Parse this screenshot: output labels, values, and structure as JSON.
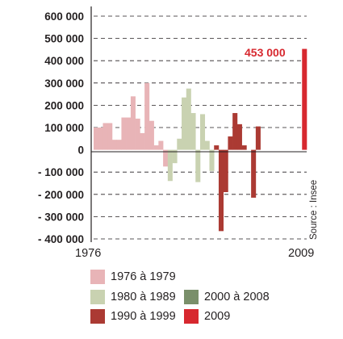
{
  "chart_data": {
    "type": "bar",
    "x_start_label": "1976",
    "x_end_label": "2009",
    "ylim": [
      -400000,
      600000
    ],
    "yticks": [
      "600 000",
      "500 000",
      "400 000",
      "300 000",
      "200 000",
      "100 000",
      "0",
      "- 100 000",
      "- 200 000",
      "- 300 000",
      "- 400 000"
    ],
    "ytick_values": [
      600000,
      500000,
      400000,
      300000,
      200000,
      100000,
      0,
      -100000,
      -200000,
      -300000,
      -400000
    ],
    "grid": "horizontal dashed",
    "source": "Source : Insee",
    "annotation": {
      "text": "453 000",
      "year": 2009
    },
    "x": [
      "1976Q1",
      "1976Q2",
      "1976Q3",
      "1976Q4",
      "1977Q1",
      "1977Q2",
      "1977Q3",
      "1977Q4",
      "1978Q1",
      "1978Q2",
      "1978Q3",
      "1978Q4",
      "1979Q1",
      "1979Q2",
      "1979Q3",
      "1979Q4",
      "1980",
      "1981",
      "1982",
      "1983",
      "1984",
      "1985",
      "1986",
      "1987",
      "1988",
      "1989",
      "1990",
      "1991",
      "1992",
      "1993",
      "1994",
      "1995",
      "1996",
      "1997",
      "1998",
      "1999",
      "2000",
      "2001",
      "2002",
      "2003",
      "2004",
      "2005",
      "2006",
      "2007",
      "2008",
      "2009"
    ],
    "values": [
      100000,
      100000,
      120000,
      120000,
      45000,
      45000,
      145000,
      145000,
      240000,
      140000,
      75000,
      300000,
      130000,
      20000,
      40000,
      -75000,
      -140000,
      -60000,
      50000,
      235000,
      275000,
      165000,
      -145000,
      160000,
      40000,
      -95000,
      20000,
      -365000,
      -190000,
      60000,
      165000,
      115000,
      20000,
      0,
      -215000,
      105000,
      0,
      0,
      0,
      0,
      0,
      0,
      0,
      0,
      0,
      453000
    ],
    "periods": [
      {
        "label": "1976 à 1979",
        "color": "#e8b4b7"
      },
      {
        "label": "1980 à 1989",
        "color": "#c9d2b1"
      },
      {
        "label": "1990 à 1999",
        "color": "#ab3a33"
      },
      {
        "label": "2000 à 2008",
        "color": "#7a8f6a"
      },
      {
        "label": "2009",
        "color": "#d7282f"
      }
    ]
  }
}
